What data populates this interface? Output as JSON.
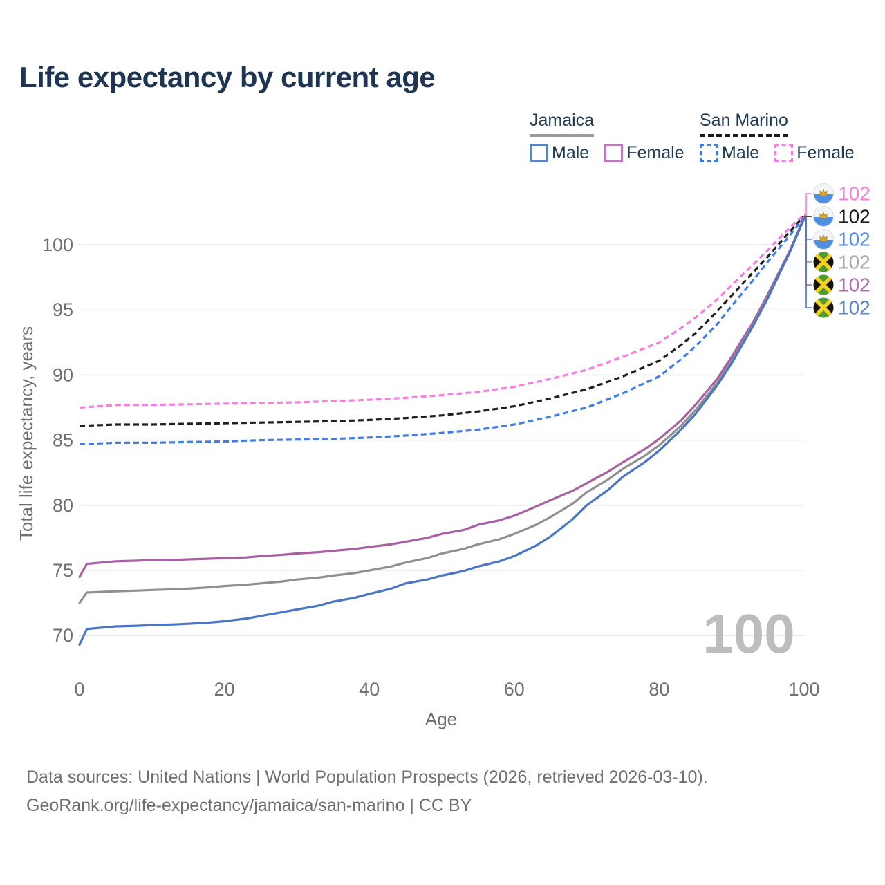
{
  "title": "Life expectancy by current age",
  "legend": {
    "groups": [
      {
        "country": "Jamaica",
        "line_style": "solid",
        "underline_color": "#9a9a9a",
        "items": [
          {
            "label": "Male",
            "color": "#5b84c4",
            "dashed": false
          },
          {
            "label": "Female",
            "color": "#bc7bb8",
            "dashed": false
          }
        ]
      },
      {
        "country": "San Marino",
        "line_style": "dashed",
        "underline_color": "#1a1a1a",
        "items": [
          {
            "label": "Male",
            "color": "#3d7bea",
            "dashed": true
          },
          {
            "label": "Female",
            "color": "#f97ce2",
            "dashed": true
          }
        ]
      }
    ]
  },
  "chart_data": {
    "type": "line",
    "title": "Life expectancy by current age",
    "xlabel": "Age",
    "ylabel": "Total life expectancy, years",
    "xlim": [
      0,
      100
    ],
    "ylim": [
      68,
      103
    ],
    "xticks": [
      0,
      20,
      40,
      60,
      80,
      100
    ],
    "yticks": [
      70,
      75,
      80,
      85,
      90,
      95,
      100
    ],
    "grid": "horizontal-only",
    "watermark": "100",
    "colors": {
      "grid": "#e8e8e8",
      "axis_text": "#6f6f6f",
      "title": "#1d3452",
      "footer": "#6f6f6f",
      "watermark": "#bdbdbd",
      "legend_text": "#233c55"
    },
    "series": [
      {
        "id": "sm_female",
        "name": "San Marino Female",
        "country": "San Marino",
        "sex": "Female",
        "color": "#f97ce2",
        "dash": true,
        "points": [
          [
            0,
            87.5
          ],
          [
            5,
            87.7
          ],
          [
            10,
            87.7
          ],
          [
            15,
            87.75
          ],
          [
            20,
            87.8
          ],
          [
            25,
            87.85
          ],
          [
            30,
            87.9
          ],
          [
            35,
            88.0
          ],
          [
            40,
            88.1
          ],
          [
            45,
            88.25
          ],
          [
            50,
            88.45
          ],
          [
            55,
            88.7
          ],
          [
            60,
            89.1
          ],
          [
            65,
            89.7
          ],
          [
            70,
            90.4
          ],
          [
            75,
            91.4
          ],
          [
            80,
            92.5
          ],
          [
            83,
            93.6
          ],
          [
            85,
            94.4
          ],
          [
            88,
            95.8
          ],
          [
            90,
            96.9
          ],
          [
            93,
            98.5
          ],
          [
            95,
            99.6
          ],
          [
            98,
            101.3
          ],
          [
            100,
            102.3
          ]
        ]
      },
      {
        "id": "sm_both",
        "name": "San Marino Both sexes",
        "country": "San Marino",
        "sex": "Both",
        "color": "#1f1f1f",
        "dash": true,
        "points": [
          [
            0,
            86.1
          ],
          [
            5,
            86.2
          ],
          [
            10,
            86.2
          ],
          [
            15,
            86.25
          ],
          [
            20,
            86.3
          ],
          [
            25,
            86.35
          ],
          [
            30,
            86.4
          ],
          [
            35,
            86.45
          ],
          [
            40,
            86.55
          ],
          [
            45,
            86.7
          ],
          [
            50,
            86.9
          ],
          [
            55,
            87.2
          ],
          [
            60,
            87.6
          ],
          [
            65,
            88.2
          ],
          [
            70,
            88.9
          ],
          [
            75,
            89.9
          ],
          [
            80,
            91.1
          ],
          [
            83,
            92.3
          ],
          [
            85,
            93.2
          ],
          [
            88,
            94.9
          ],
          [
            90,
            96.1
          ],
          [
            93,
            97.9
          ],
          [
            95,
            99.1
          ],
          [
            98,
            101.0
          ],
          [
            100,
            102.2
          ]
        ]
      },
      {
        "id": "sm_male",
        "name": "San Marino Male",
        "country": "San Marino",
        "sex": "Male",
        "color": "#3f7de8",
        "dash": true,
        "points": [
          [
            0,
            84.7
          ],
          [
            5,
            84.8
          ],
          [
            10,
            84.8
          ],
          [
            15,
            84.85
          ],
          [
            20,
            84.9
          ],
          [
            25,
            85.0
          ],
          [
            30,
            85.05
          ],
          [
            35,
            85.1
          ],
          [
            40,
            85.2
          ],
          [
            45,
            85.35
          ],
          [
            50,
            85.55
          ],
          [
            55,
            85.8
          ],
          [
            60,
            86.2
          ],
          [
            65,
            86.8
          ],
          [
            70,
            87.5
          ],
          [
            75,
            88.6
          ],
          [
            80,
            89.9
          ],
          [
            83,
            91.2
          ],
          [
            85,
            92.2
          ],
          [
            88,
            93.9
          ],
          [
            90,
            95.3
          ],
          [
            93,
            97.3
          ],
          [
            95,
            98.7
          ],
          [
            98,
            100.7
          ],
          [
            100,
            102.1
          ]
        ]
      },
      {
        "id": "jm_female",
        "name": "Jamaica Female",
        "country": "Jamaica",
        "sex": "Female",
        "color": "#a85fa3",
        "dash": false,
        "points": [
          [
            0,
            74.5
          ],
          [
            1,
            75.5
          ],
          [
            3,
            75.6
          ],
          [
            5,
            75.7
          ],
          [
            8,
            75.75
          ],
          [
            10,
            75.8
          ],
          [
            13,
            75.8
          ],
          [
            15,
            75.85
          ],
          [
            18,
            75.9
          ],
          [
            20,
            75.95
          ],
          [
            23,
            76.0
          ],
          [
            25,
            76.1
          ],
          [
            28,
            76.2
          ],
          [
            30,
            76.3
          ],
          [
            33,
            76.4
          ],
          [
            35,
            76.5
          ],
          [
            38,
            76.65
          ],
          [
            40,
            76.8
          ],
          [
            43,
            77.0
          ],
          [
            45,
            77.2
          ],
          [
            48,
            77.5
          ],
          [
            50,
            77.8
          ],
          [
            53,
            78.1
          ],
          [
            55,
            78.5
          ],
          [
            58,
            78.85
          ],
          [
            60,
            79.2
          ],
          [
            63,
            79.9
          ],
          [
            65,
            80.4
          ],
          [
            68,
            81.1
          ],
          [
            70,
            81.7
          ],
          [
            73,
            82.6
          ],
          [
            75,
            83.3
          ],
          [
            78,
            84.3
          ],
          [
            80,
            85.1
          ],
          [
            83,
            86.5
          ],
          [
            85,
            87.7
          ],
          [
            88,
            89.7
          ],
          [
            90,
            91.4
          ],
          [
            93,
            94.1
          ],
          [
            95,
            96.2
          ],
          [
            98,
            99.5
          ],
          [
            100,
            102.1
          ]
        ]
      },
      {
        "id": "jm_both",
        "name": "Jamaica Both sexes",
        "country": "Jamaica",
        "sex": "Both",
        "color": "#909090",
        "dash": false,
        "points": [
          [
            0,
            72.5
          ],
          [
            1,
            73.3
          ],
          [
            3,
            73.35
          ],
          [
            5,
            73.4
          ],
          [
            8,
            73.45
          ],
          [
            10,
            73.5
          ],
          [
            13,
            73.55
          ],
          [
            15,
            73.6
          ],
          [
            18,
            73.7
          ],
          [
            20,
            73.8
          ],
          [
            23,
            73.9
          ],
          [
            25,
            74.0
          ],
          [
            28,
            74.15
          ],
          [
            30,
            74.3
          ],
          [
            33,
            74.45
          ],
          [
            35,
            74.6
          ],
          [
            38,
            74.8
          ],
          [
            40,
            75.0
          ],
          [
            43,
            75.3
          ],
          [
            45,
            75.6
          ],
          [
            48,
            75.95
          ],
          [
            50,
            76.3
          ],
          [
            53,
            76.65
          ],
          [
            55,
            77.0
          ],
          [
            58,
            77.4
          ],
          [
            60,
            77.8
          ],
          [
            63,
            78.5
          ],
          [
            65,
            79.1
          ],
          [
            68,
            80.1
          ],
          [
            70,
            81.0
          ],
          [
            73,
            82.0
          ],
          [
            75,
            82.8
          ],
          [
            78,
            83.8
          ],
          [
            80,
            84.6
          ],
          [
            83,
            86.1
          ],
          [
            85,
            87.3
          ],
          [
            88,
            89.4
          ],
          [
            90,
            91.1
          ],
          [
            93,
            93.9
          ],
          [
            95,
            96.0
          ],
          [
            98,
            99.4
          ],
          [
            100,
            102.0
          ]
        ]
      },
      {
        "id": "jm_male",
        "name": "Jamaica Male",
        "country": "Jamaica",
        "sex": "Male",
        "color": "#4a76c5",
        "dash": false,
        "points": [
          [
            0,
            69.3
          ],
          [
            1,
            70.5
          ],
          [
            3,
            70.6
          ],
          [
            5,
            70.7
          ],
          [
            8,
            70.75
          ],
          [
            10,
            70.8
          ],
          [
            13,
            70.85
          ],
          [
            15,
            70.9
          ],
          [
            18,
            71.0
          ],
          [
            20,
            71.1
          ],
          [
            23,
            71.3
          ],
          [
            25,
            71.5
          ],
          [
            28,
            71.8
          ],
          [
            30,
            72.0
          ],
          [
            33,
            72.3
          ],
          [
            35,
            72.6
          ],
          [
            38,
            72.9
          ],
          [
            40,
            73.2
          ],
          [
            43,
            73.6
          ],
          [
            45,
            74.0
          ],
          [
            48,
            74.3
          ],
          [
            50,
            74.6
          ],
          [
            53,
            74.95
          ],
          [
            55,
            75.3
          ],
          [
            58,
            75.7
          ],
          [
            60,
            76.1
          ],
          [
            63,
            76.9
          ],
          [
            65,
            77.6
          ],
          [
            68,
            78.9
          ],
          [
            70,
            80.0
          ],
          [
            73,
            81.2
          ],
          [
            75,
            82.2
          ],
          [
            78,
            83.3
          ],
          [
            80,
            84.2
          ],
          [
            83,
            85.8
          ],
          [
            85,
            87.0
          ],
          [
            88,
            89.2
          ],
          [
            90,
            90.9
          ],
          [
            93,
            93.8
          ],
          [
            95,
            95.9
          ],
          [
            98,
            99.4
          ],
          [
            100,
            102.0
          ]
        ]
      }
    ],
    "end_labels": [
      {
        "series": "sm_female",
        "flag": "san-marino",
        "value": "102",
        "color": "#fb7be0"
      },
      {
        "series": "sm_both",
        "flag": "san-marino",
        "value": "102",
        "color": "#1a1a1a"
      },
      {
        "series": "sm_male",
        "flag": "san-marino",
        "value": "102",
        "color": "#4f8bf0"
      },
      {
        "series": "jm_both",
        "flag": "jamaica",
        "value": "102",
        "color": "#a8a8a8"
      },
      {
        "series": "jm_female",
        "flag": "jamaica",
        "value": "102",
        "color": "#b06cb0"
      },
      {
        "series": "jm_male",
        "flag": "jamaica",
        "value": "102",
        "color": "#5b84c9"
      }
    ]
  },
  "footer": {
    "line1": "Data sources: United Nations | World Population Prospects (2026, retrieved 2026-03-10).",
    "line2": "GeoRank.org/life-expectancy/jamaica/san-marino | CC BY"
  }
}
